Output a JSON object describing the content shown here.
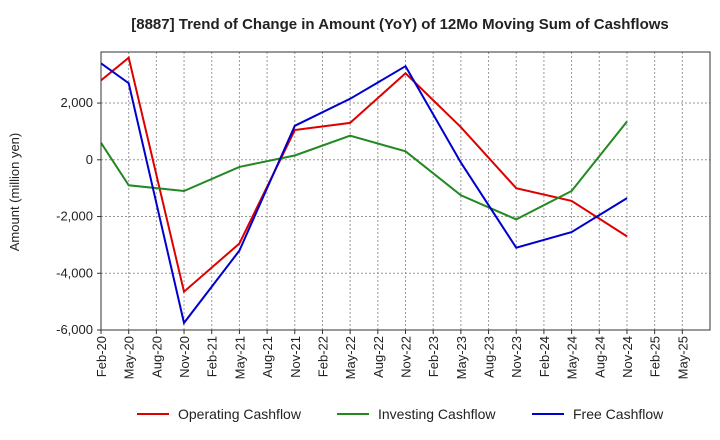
{
  "chart_data": {
    "type": "line",
    "title": "[8887]  Trend of Change in Amount (YoY) of 12Mo Moving Sum of Cashflows",
    "xlabel": "",
    "ylabel": "Amount (million yen)",
    "ylim": [
      -6000,
      3800
    ],
    "yticks": [
      2000,
      0,
      -2000,
      -4000,
      -6000
    ],
    "ytick_labels": [
      "2,000",
      "0",
      "-2,000",
      "-4,000",
      "-6,000"
    ],
    "x_count": 23,
    "x_tick_labels": [
      "Feb-20",
      "May-20",
      "Aug-20",
      "Nov-20",
      "Feb-21",
      "May-21",
      "Aug-21",
      "Nov-21",
      "Feb-22",
      "May-22",
      "Aug-22",
      "Nov-22",
      "Feb-23",
      "May-23",
      "Aug-23",
      "Nov-23",
      "Feb-24",
      "May-24",
      "Aug-24",
      "Nov-24",
      "Feb-25",
      "May-25"
    ],
    "series": [
      {
        "name": "Operating Cashflow",
        "color": "#dd0000",
        "points": [
          [
            0,
            2800
          ],
          [
            1,
            3600
          ],
          [
            3,
            -4650
          ],
          [
            5,
            -2950
          ],
          [
            7,
            1050
          ],
          [
            9,
            1300
          ],
          [
            11,
            3050
          ],
          [
            13,
            1150
          ],
          [
            15,
            -1000
          ],
          [
            17,
            -1450
          ],
          [
            19,
            -2700
          ]
        ]
      },
      {
        "name": "Investing Cashflow",
        "color": "#228822",
        "points": [
          [
            0,
            600
          ],
          [
            1,
            -900
          ],
          [
            3,
            -1100
          ],
          [
            5,
            -250
          ],
          [
            7,
            150
          ],
          [
            9,
            850
          ],
          [
            11,
            300
          ],
          [
            13,
            -1250
          ],
          [
            15,
            -2100
          ],
          [
            17,
            -1100
          ],
          [
            19,
            1350
          ]
        ]
      },
      {
        "name": "Free Cashflow",
        "color": "#0000cc",
        "points": [
          [
            0,
            3400
          ],
          [
            1,
            2700
          ],
          [
            3,
            -5750
          ],
          [
            5,
            -3200
          ],
          [
            7,
            1200
          ],
          [
            9,
            2150
          ],
          [
            11,
            3300
          ],
          [
            13,
            -100
          ],
          [
            15,
            -3100
          ],
          [
            17,
            -2550
          ],
          [
            19,
            -1350
          ]
        ]
      }
    ]
  }
}
